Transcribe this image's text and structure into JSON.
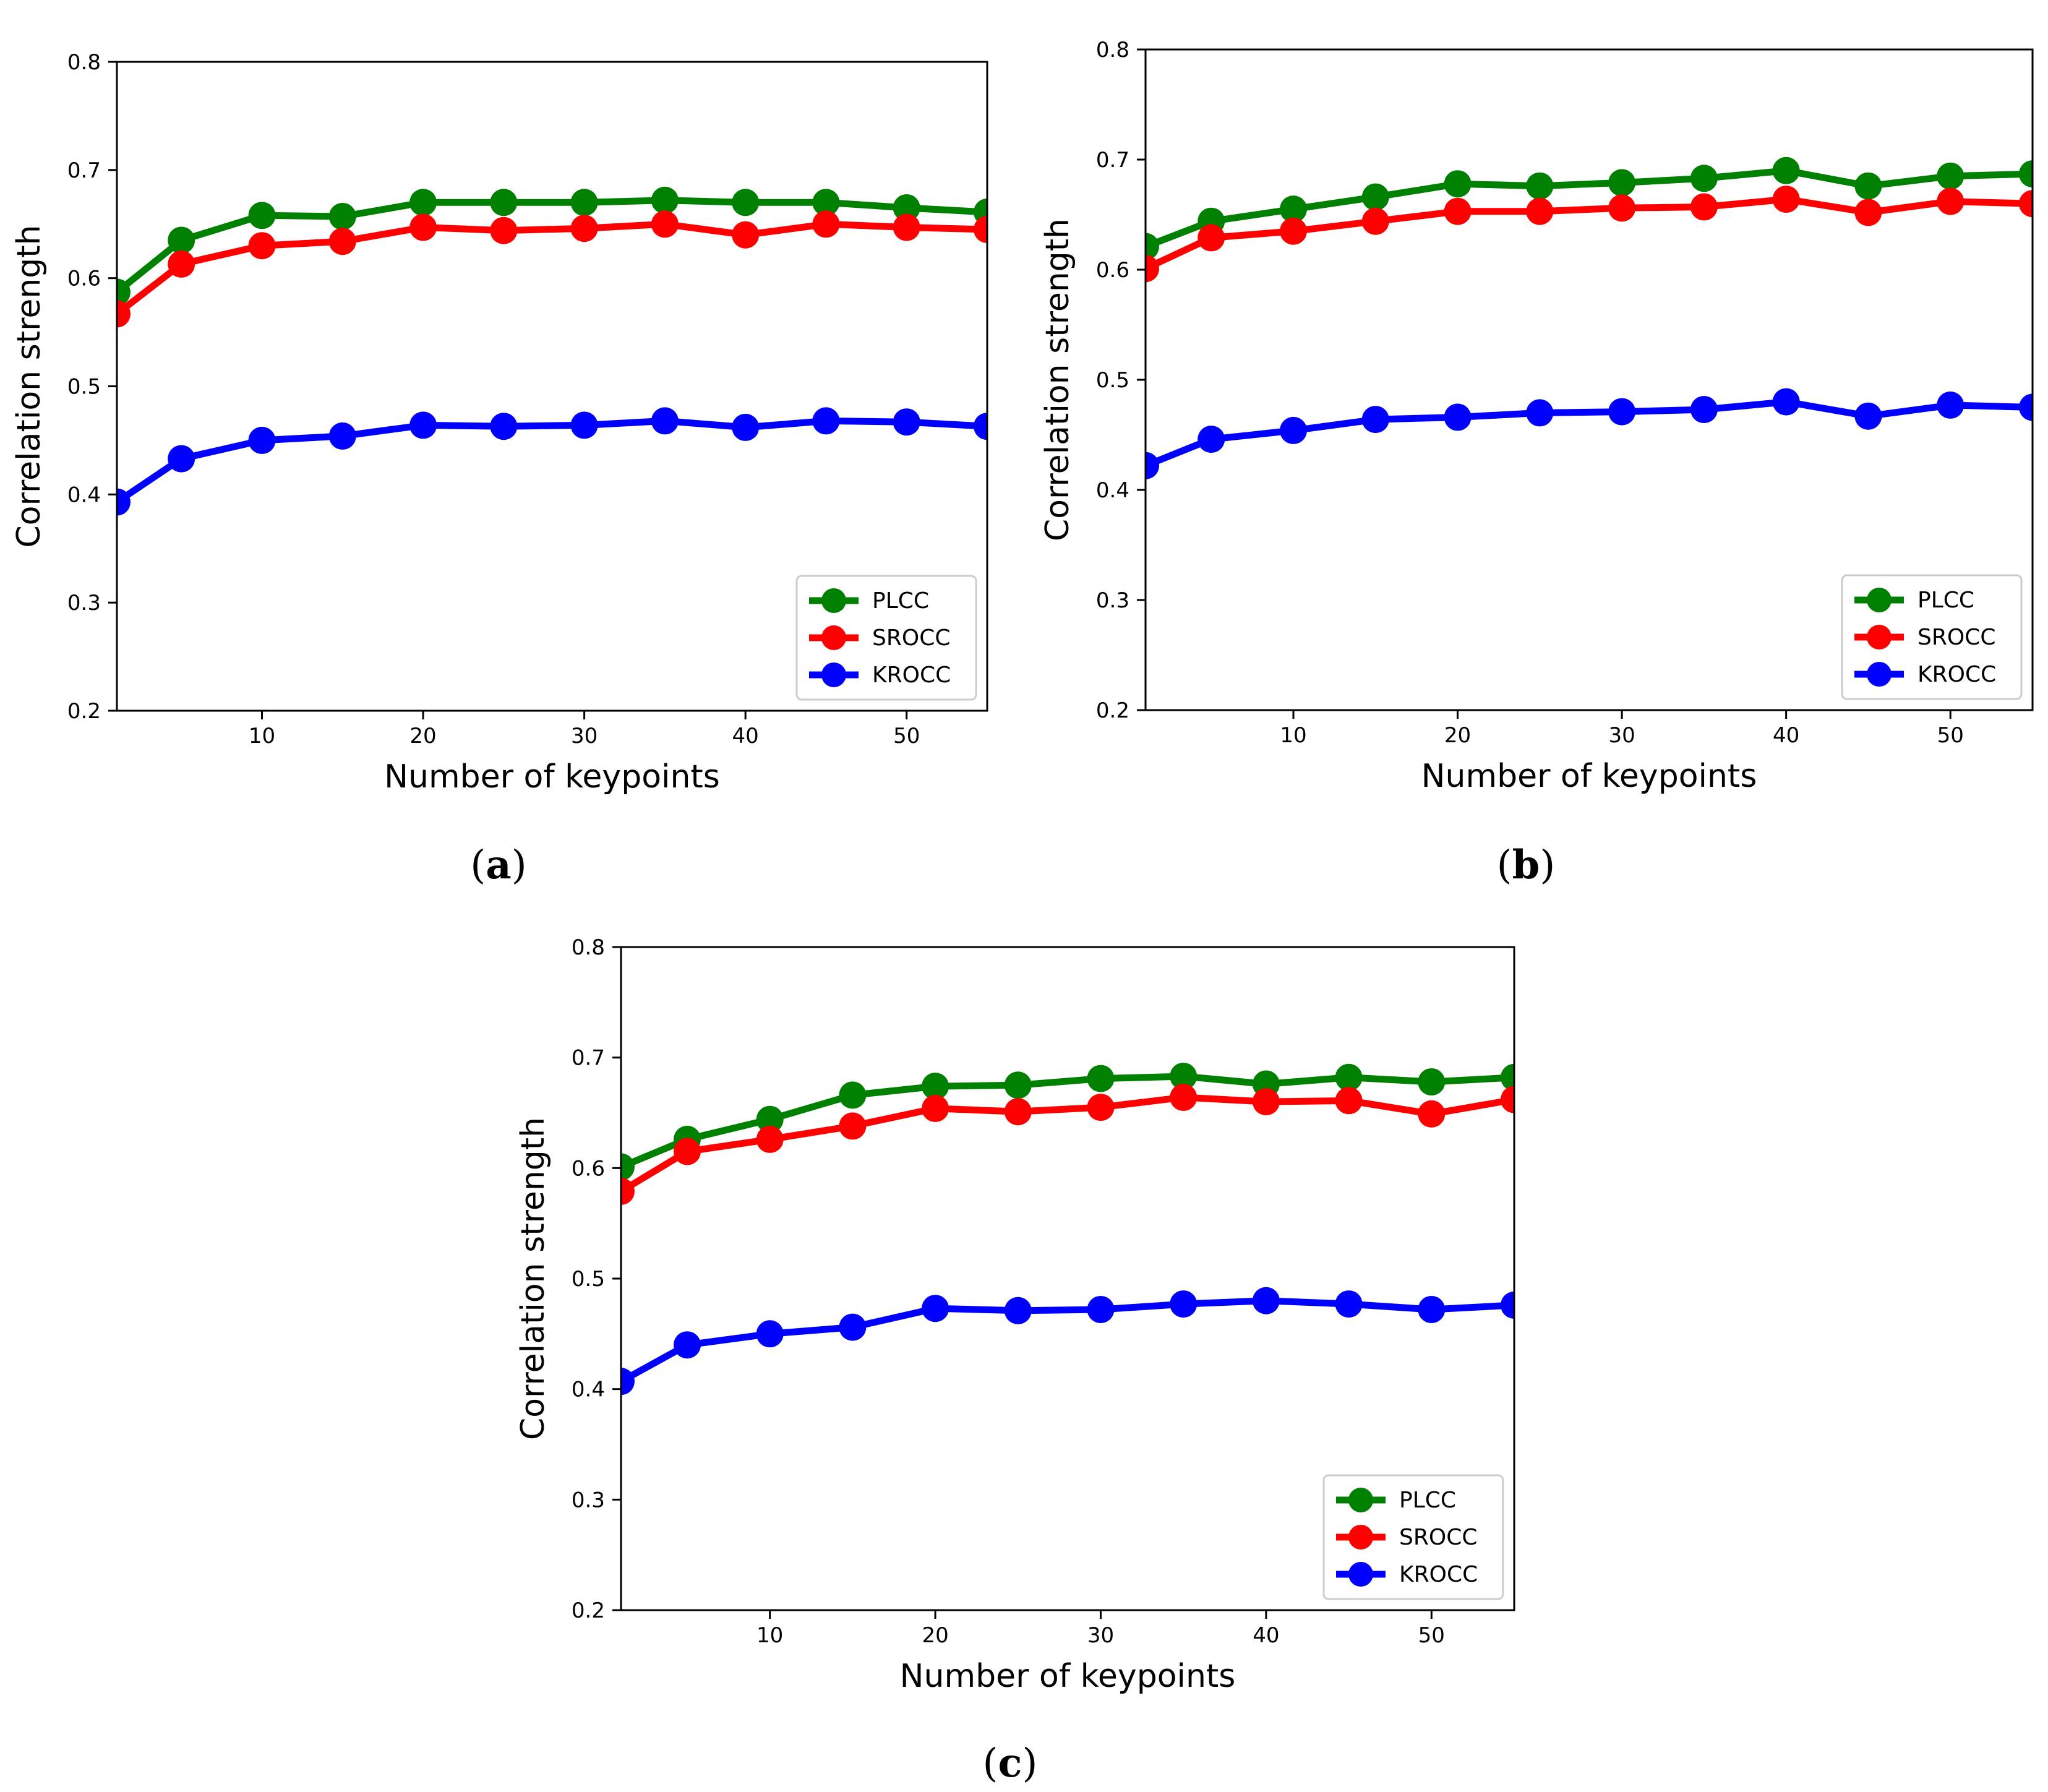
{
  "figure": {
    "panels": [
      {
        "id": "a",
        "caption_open": "(",
        "caption_letter": "a",
        "caption_close": ")"
      },
      {
        "id": "b",
        "caption_open": "(",
        "caption_letter": "b",
        "caption_close": ")"
      },
      {
        "id": "c",
        "caption_open": "(",
        "caption_letter": "c",
        "caption_close": ")"
      }
    ]
  },
  "colors": {
    "PLCC": "#008000",
    "SROCC": "#ff0000",
    "KROCC": "#0000ff",
    "axis": "#000000",
    "background": "#ffffff"
  },
  "chart_data": [
    {
      "type": "line",
      "panel": "a",
      "title": "",
      "xlabel": "Number of keypoints",
      "ylabel": "Correlation strength",
      "xlim": [
        1,
        55
      ],
      "ylim": [
        0.2,
        0.8
      ],
      "xticks": [
        10,
        20,
        30,
        40,
        50
      ],
      "yticks": [
        0.2,
        0.3,
        0.4,
        0.5,
        0.6,
        0.7,
        0.8
      ],
      "ytick_labels": [
        "0.2",
        "0.3",
        "0.4",
        "0.5",
        "0.6",
        "0.7",
        "0.8"
      ],
      "legend_position": "lower-right",
      "x": [
        1,
        5,
        10,
        15,
        20,
        25,
        30,
        35,
        40,
        45,
        50,
        55
      ],
      "series": [
        {
          "name": "PLCC",
          "values": [
            0.587,
            0.635,
            0.658,
            0.657,
            0.67,
            0.67,
            0.67,
            0.672,
            0.67,
            0.67,
            0.665,
            0.661
          ]
        },
        {
          "name": "SROCC",
          "values": [
            0.567,
            0.613,
            0.63,
            0.634,
            0.647,
            0.644,
            0.646,
            0.65,
            0.64,
            0.65,
            0.647,
            0.645
          ]
        },
        {
          "name": "KROCC",
          "values": [
            0.393,
            0.433,
            0.45,
            0.454,
            0.464,
            0.463,
            0.464,
            0.468,
            0.462,
            0.468,
            0.467,
            0.463
          ]
        }
      ]
    },
    {
      "type": "line",
      "panel": "b",
      "title": "",
      "xlabel": "Number of keypoints",
      "ylabel": "Correlation strength",
      "xlim": [
        1,
        55
      ],
      "ylim": [
        0.2,
        0.8
      ],
      "xticks": [
        10,
        20,
        30,
        40,
        50
      ],
      "yticks": [
        0.2,
        0.3,
        0.4,
        0.5,
        0.6,
        0.7,
        0.8
      ],
      "ytick_labels": [
        "0.2",
        "0.3",
        "0.4",
        "0.5",
        "0.6",
        "0.7",
        "0.8"
      ],
      "legend_position": "lower-right",
      "x": [
        1,
        5,
        10,
        15,
        20,
        25,
        30,
        35,
        40,
        45,
        50,
        55
      ],
      "series": [
        {
          "name": "PLCC",
          "values": [
            0.621,
            0.644,
            0.655,
            0.666,
            0.678,
            0.676,
            0.679,
            0.683,
            0.69,
            0.676,
            0.685,
            0.687
          ]
        },
        {
          "name": "SROCC",
          "values": [
            0.601,
            0.629,
            0.635,
            0.644,
            0.653,
            0.653,
            0.656,
            0.657,
            0.664,
            0.652,
            0.662,
            0.66
          ]
        },
        {
          "name": "KROCC",
          "values": [
            0.422,
            0.446,
            0.454,
            0.464,
            0.466,
            0.47,
            0.471,
            0.473,
            0.48,
            0.467,
            0.477,
            0.475
          ]
        }
      ]
    },
    {
      "type": "line",
      "panel": "c",
      "title": "",
      "xlabel": "Number of keypoints",
      "ylabel": "Correlation strength",
      "xlim": [
        1,
        55
      ],
      "ylim": [
        0.2,
        0.8
      ],
      "xticks": [
        10,
        20,
        30,
        40,
        50
      ],
      "yticks": [
        0.2,
        0.3,
        0.4,
        0.5,
        0.6,
        0.7,
        0.8
      ],
      "ytick_labels": [
        "0.2",
        "0.3",
        "0.4",
        "0.5",
        "0.6",
        "0.7",
        "0.8"
      ],
      "legend_position": "lower-right",
      "x": [
        1,
        5,
        10,
        15,
        20,
        25,
        30,
        35,
        40,
        45,
        50,
        55
      ],
      "series": [
        {
          "name": "PLCC",
          "values": [
            0.601,
            0.626,
            0.644,
            0.666,
            0.674,
            0.675,
            0.681,
            0.683,
            0.676,
            0.682,
            0.678,
            0.682
          ]
        },
        {
          "name": "SROCC",
          "values": [
            0.579,
            0.615,
            0.626,
            0.638,
            0.654,
            0.651,
            0.655,
            0.664,
            0.66,
            0.661,
            0.649,
            0.662
          ]
        },
        {
          "name": "KROCC",
          "values": [
            0.407,
            0.44,
            0.45,
            0.456,
            0.473,
            0.471,
            0.472,
            0.477,
            0.48,
            0.477,
            0.472,
            0.476
          ]
        }
      ]
    }
  ]
}
